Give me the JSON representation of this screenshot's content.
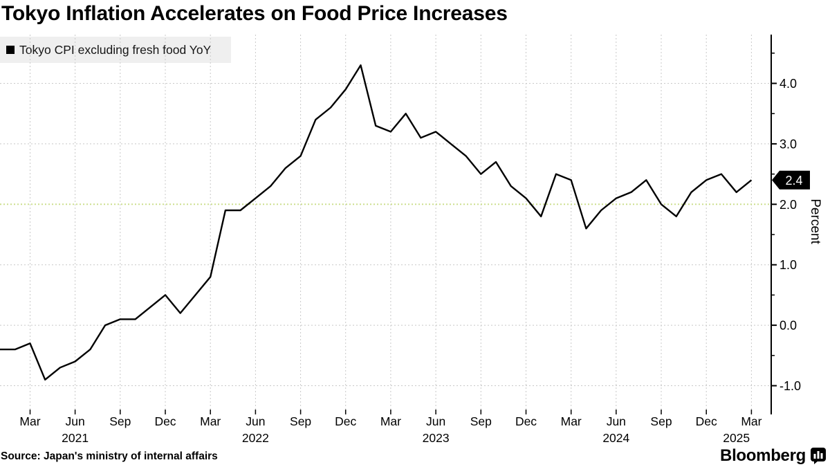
{
  "title": "Tokyo Inflation Accelerates on Food Price Increases",
  "legend": {
    "label": "Tokyo CPI excluding fresh food YoY",
    "swatch_color": "#000000"
  },
  "source_line": "Source: Japan's ministry of internal affairs",
  "brand": {
    "name": "Bloomberg"
  },
  "colors": {
    "line": "#000000",
    "grid": "#c8c8c8",
    "target_line": "#ccdf8e",
    "legend_bg": "#efefef",
    "badge_bg": "#000000",
    "badge_text": "#ffffff"
  },
  "y_axis": {
    "label": "Percent",
    "major_ticks": [
      {
        "label": "4.0",
        "value": 4.0
      },
      {
        "label": "3.0",
        "value": 3.0
      },
      {
        "label": "2.0",
        "value": 2.0
      },
      {
        "label": "1.0",
        "value": 1.0
      },
      {
        "label": "0.0",
        "value": 0.0
      },
      {
        "label": "-1.0",
        "value": -1.0
      }
    ],
    "minor_tick_values": [
      4.5,
      3.5,
      2.5,
      1.5,
      0.5,
      -0.5
    ],
    "badge": {
      "label": "2.4",
      "value": 2.4
    }
  },
  "x_axis": {
    "quarter_ticks": [
      {
        "label": "Mar",
        "month_index": 2
      },
      {
        "label": "Jun",
        "month_index": 5
      },
      {
        "label": "Sep",
        "month_index": 8
      },
      {
        "label": "Dec",
        "month_index": 11
      },
      {
        "label": "Mar",
        "month_index": 14
      },
      {
        "label": "Jun",
        "month_index": 17
      },
      {
        "label": "Sep",
        "month_index": 20
      },
      {
        "label": "Dec",
        "month_index": 23
      },
      {
        "label": "Mar",
        "month_index": 26
      },
      {
        "label": "Jun",
        "month_index": 29
      },
      {
        "label": "Sep",
        "month_index": 32
      },
      {
        "label": "Dec",
        "month_index": 35
      },
      {
        "label": "Mar",
        "month_index": 38
      },
      {
        "label": "Jun",
        "month_index": 41
      },
      {
        "label": "Sep",
        "month_index": 44
      },
      {
        "label": "Dec",
        "month_index": 47
      },
      {
        "label": "Mar",
        "month_index": 50
      }
    ],
    "year_labels": [
      {
        "label": "2021",
        "month_index": 5
      },
      {
        "label": "2022",
        "month_index": 17
      },
      {
        "label": "2023",
        "month_index": 29
      },
      {
        "label": "2024",
        "month_index": 41
      },
      {
        "label": "2025",
        "month_index": 49
      }
    ]
  },
  "target_line": {
    "value": 2.0
  },
  "chart_data": {
    "type": "line",
    "title": "Tokyo Inflation Accelerates on Food Price Increases",
    "ylabel": "Percent",
    "ylim": [
      -1.45,
      4.8
    ],
    "grid": true,
    "legend_position": "top-left",
    "reference_line_value": 2.0,
    "last_value": 2.4,
    "x": [
      "2021-01",
      "2021-02",
      "2021-03",
      "2021-04",
      "2021-05",
      "2021-06",
      "2021-07",
      "2021-08",
      "2021-09",
      "2021-10",
      "2021-11",
      "2021-12",
      "2022-01",
      "2022-02",
      "2022-03",
      "2022-04",
      "2022-05",
      "2022-06",
      "2022-07",
      "2022-08",
      "2022-09",
      "2022-10",
      "2022-11",
      "2022-12",
      "2023-01",
      "2023-02",
      "2023-03",
      "2023-04",
      "2023-05",
      "2023-06",
      "2023-07",
      "2023-08",
      "2023-09",
      "2023-10",
      "2023-11",
      "2023-12",
      "2024-01",
      "2024-02",
      "2024-03",
      "2024-04",
      "2024-05",
      "2024-06",
      "2024-07",
      "2024-08",
      "2024-09",
      "2024-10",
      "2024-11",
      "2024-12",
      "2025-01",
      "2025-02",
      "2025-03"
    ],
    "series": [
      {
        "name": "Tokyo CPI excluding fresh food YoY",
        "color": "#000000",
        "values": [
          -0.4,
          -0.4,
          -0.3,
          -0.9,
          -0.7,
          -0.6,
          -0.4,
          0.0,
          0.1,
          0.1,
          0.3,
          0.5,
          0.2,
          0.5,
          0.8,
          1.9,
          1.9,
          2.1,
          2.3,
          2.6,
          2.8,
          3.4,
          3.6,
          3.9,
          4.3,
          3.3,
          3.2,
          3.5,
          3.1,
          3.2,
          3.0,
          2.8,
          2.5,
          2.7,
          2.3,
          2.1,
          1.8,
          2.5,
          2.4,
          1.6,
          1.9,
          2.1,
          2.2,
          2.4,
          2.0,
          1.8,
          2.2,
          2.4,
          2.5,
          2.2,
          2.4
        ]
      }
    ]
  }
}
